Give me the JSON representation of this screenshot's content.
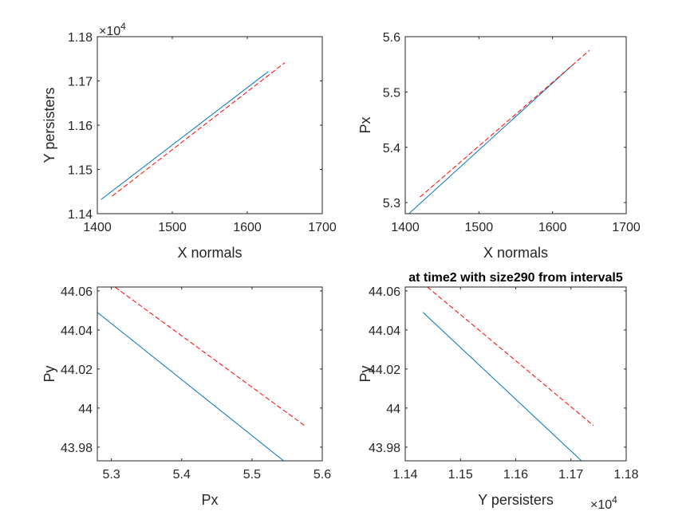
{
  "figure": {
    "background": "#ffffff"
  },
  "chart_data": [
    {
      "type": "line",
      "title": "",
      "xlabel": "X normals",
      "ylabel": "Y persisters",
      "xlim": [
        1400,
        1700
      ],
      "ylim": [
        11400,
        11800
      ],
      "xticks": [
        1400,
        1500,
        1600,
        1700
      ],
      "xtick_labels": [
        "1400",
        "1500",
        "1600",
        "1700"
      ],
      "yticks": [
        11400,
        11500,
        11600,
        11700,
        11800
      ],
      "ytick_labels": [
        "1.14",
        "1.15",
        "1.16",
        "1.17",
        "1.18"
      ],
      "y_exponent": "4",
      "x_exponent": "",
      "grid": false,
      "series": [
        {
          "color": "#0072BD",
          "style": "solid",
          "x": [
            1405,
            1628
          ],
          "y": [
            11432,
            11721
          ]
        },
        {
          "color": "#FF0000",
          "style": "dashed",
          "x": [
            1420,
            1650
          ],
          "y": [
            11440,
            11741
          ]
        }
      ]
    },
    {
      "type": "line",
      "title": "",
      "xlabel": "X normals",
      "ylabel": "Px",
      "xlim": [
        1400,
        1700
      ],
      "ylim": [
        5.28,
        5.6
      ],
      "xticks": [
        1400,
        1500,
        1600,
        1700
      ],
      "xtick_labels": [
        "1400",
        "1500",
        "1600",
        "1700"
      ],
      "yticks": [
        5.3,
        5.4,
        5.5,
        5.6
      ],
      "ytick_labels": [
        "5.3",
        "5.4",
        "5.5",
        "5.6"
      ],
      "y_exponent": "",
      "x_exponent": "",
      "grid": false,
      "series": [
        {
          "color": "#0072BD",
          "style": "solid",
          "x": [
            1405,
            1628
          ],
          "y": [
            5.28,
            5.55
          ]
        },
        {
          "color": "#FF0000",
          "style": "dashed",
          "x": [
            1420,
            1650
          ],
          "y": [
            5.31,
            5.575
          ]
        }
      ]
    },
    {
      "type": "line",
      "title": "",
      "xlabel": "Px",
      "ylabel": "Py",
      "xlim": [
        5.28,
        5.6
      ],
      "ylim": [
        43.973,
        44.062
      ],
      "xticks": [
        5.3,
        5.4,
        5.5,
        5.6
      ],
      "xtick_labels": [
        "5.3",
        "5.4",
        "5.5",
        "5.6"
      ],
      "yticks": [
        43.98,
        44.0,
        44.02,
        44.04,
        44.06
      ],
      "ytick_labels": [
        "43.98",
        "44",
        "44.02",
        "44.04",
        "44.06"
      ],
      "y_exponent": "",
      "x_exponent": "",
      "grid": false,
      "series": [
        {
          "color": "#0072BD",
          "style": "solid",
          "x": [
            5.28,
            5.545
          ],
          "y": [
            44.049,
            43.973
          ]
        },
        {
          "color": "#FF0000",
          "style": "dashed",
          "x": [
            5.305,
            5.575
          ],
          "y": [
            44.062,
            43.991
          ]
        }
      ]
    },
    {
      "type": "line",
      "title": "at time2 with size290 from interval5",
      "xlabel": "Y persisters",
      "ylabel": "Py",
      "xlim": [
        11400,
        11800
      ],
      "ylim": [
        43.973,
        44.062
      ],
      "xticks": [
        11400,
        11500,
        11600,
        11700,
        11800
      ],
      "xtick_labels": [
        "1.14",
        "1.15",
        "1.16",
        "1.17",
        "1.18"
      ],
      "yticks": [
        43.98,
        44.0,
        44.02,
        44.04,
        44.06
      ],
      "ytick_labels": [
        "43.98",
        "44",
        "44.02",
        "44.04",
        "44.06"
      ],
      "y_exponent": "",
      "x_exponent": "4",
      "grid": false,
      "series": [
        {
          "color": "#0072BD",
          "style": "solid",
          "x": [
            11432,
            11719
          ],
          "y": [
            44.049,
            43.973
          ]
        },
        {
          "color": "#FF0000",
          "style": "dashed",
          "x": [
            11440,
            11741
          ],
          "y": [
            44.062,
            43.991
          ]
        }
      ]
    }
  ]
}
